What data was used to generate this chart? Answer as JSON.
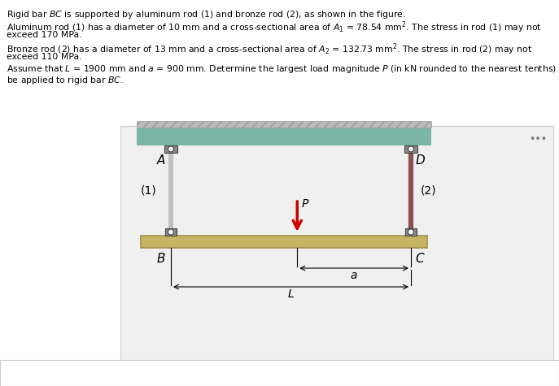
{
  "ceiling_color": "#7ab5a8",
  "ceiling_hatch_color": "#a0c0b8",
  "bar_color": "#c8b464",
  "bar_edge_color": "#a09050",
  "rod1_color": "#c0c0c0",
  "rod2_color": "#8b5050",
  "connector_dark": "#444444",
  "connector_mid": "#888888",
  "arrow_color": "#cc0000",
  "diagram_bg": "#f0f0f0",
  "diagram_border": "#cccccc",
  "white": "#ffffff",
  "black": "#000000",
  "dim_line_color": "#333333",
  "dots_color": "#777777",
  "answer_border": "#cccccc",
  "answer_text_color": "#aaaaaa",
  "text_lines": [
    "Rigid bar $BC$ is supported by aluminum rod (1) and bronze rod (2), as shown in the figure.",
    "Aluminum rod (1) has a diameter of 10 mm and a cross-sectional area of $A_1$ = 78.54 mm$^2$. The stress in rod (1) may not",
    "exceed 170 MPa.",
    "Bronze rod (2) has a diameter of 13 mm and a cross-sectional area of $A_2$ = 132.73 mm$^2$. The stress in rod (2) may not",
    "exceed 110 MPa.",
    "Assume that $L$ = 1900 mm and $a$ = 900 mm. Determine the largest load magnitude $P$ (in kN rounded to the nearest tenths) that may",
    "be applied to rigid bar $BC$."
  ],
  "fig_w": 6.87,
  "fig_h": 4.75,
  "dpi": 100
}
